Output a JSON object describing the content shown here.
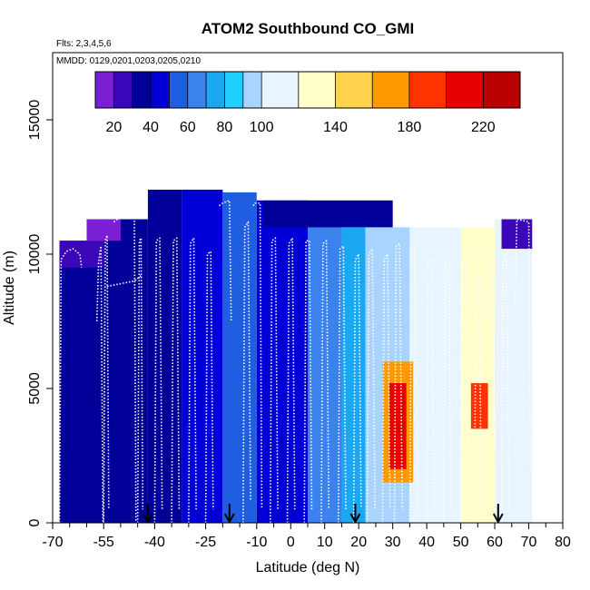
{
  "chart_data": {
    "type": "heatmap",
    "title": "ATOM2 Southbound CO_GMI",
    "flights_note": "Flts: 2,3,4,5,6",
    "dates_note": "MMDD: 0129,0201,0203,0205,0210",
    "xlabel": "Latitude (deg N)",
    "ylabel": "Altitude (m)",
    "xlim": [
      -70,
      80
    ],
    "ylim": [
      0,
      17500
    ],
    "x_ticks": [
      -70,
      -55,
      -40,
      -25,
      -10,
      0,
      10,
      20,
      30,
      40,
      50,
      60,
      70,
      80
    ],
    "x_minor_ticks": [
      -65,
      -60,
      -50,
      -45,
      -35,
      -30,
      -20,
      -15,
      -5,
      5,
      15,
      25,
      35,
      45,
      55,
      65,
      75
    ],
    "y_ticks": [
      0,
      5000,
      10000,
      15000
    ],
    "colorbar": {
      "min": 10,
      "max": 240,
      "ticks": [
        20,
        40,
        60,
        80,
        100,
        140,
        180,
        220
      ],
      "boundaries": [
        10,
        20,
        30,
        40,
        50,
        60,
        70,
        80,
        90,
        100,
        120,
        140,
        160,
        180,
        200,
        220,
        240
      ],
      "colors": [
        "#7a1fd6",
        "#3a06b8",
        "#000099",
        "#0000d6",
        "#1f5ee0",
        "#3b82ec",
        "#1aa8f2",
        "#1fd0ff",
        "#a8d4ff",
        "#e8f4ff",
        "#ffffcc",
        "#ffd24d",
        "#ff9900",
        "#ff3300",
        "#e60000",
        "#b80000"
      ]
    },
    "curtain_cells": [
      {
        "lat": [
          -68,
          -55
        ],
        "alt": [
          0,
          10500
        ],
        "value": 30
      },
      {
        "lat": [
          -55,
          -42
        ],
        "alt": [
          0,
          11300
        ],
        "value": 32
      },
      {
        "lat": [
          -42,
          -32
        ],
        "alt": [
          0,
          12400
        ],
        "value": 38
      },
      {
        "lat": [
          -32,
          -20
        ],
        "alt": [
          0,
          12400
        ],
        "value": 45
      },
      {
        "lat": [
          -20,
          -10
        ],
        "alt": [
          0,
          12300
        ],
        "value": 55
      },
      {
        "lat": [
          -10,
          5
        ],
        "alt": [
          0,
          12000
        ],
        "value": 48
      },
      {
        "lat": [
          5,
          15
        ],
        "alt": [
          0,
          11500
        ],
        "value": 62
      },
      {
        "lat": [
          15,
          22
        ],
        "alt": [
          0,
          11000
        ],
        "value": 75
      },
      {
        "lat": [
          22,
          35
        ],
        "alt": [
          0,
          11000
        ],
        "value": 95
      },
      {
        "lat": [
          35,
          50
        ],
        "alt": [
          0,
          11000
        ],
        "value": 110
      },
      {
        "lat": [
          50,
          60
        ],
        "alt": [
          0,
          11000
        ],
        "value": 120
      },
      {
        "lat": [
          60,
          71
        ],
        "alt": [
          0,
          11300
        ],
        "value": 105
      },
      {
        "lat": [
          27,
          36
        ],
        "alt": [
          1500,
          6000
        ],
        "value": 175
      },
      {
        "lat": [
          29,
          34
        ],
        "alt": [
          2000,
          5200
        ],
        "value": 215
      },
      {
        "lat": [
          53,
          58
        ],
        "alt": [
          3500,
          5200
        ],
        "value": 185
      },
      {
        "lat": [
          -68,
          -55
        ],
        "alt": [
          9500,
          10500
        ],
        "value": 22
      },
      {
        "lat": [
          -60,
          -50
        ],
        "alt": [
          10500,
          11300
        ],
        "value": 18
      },
      {
        "lat": [
          -8,
          30
        ],
        "alt": [
          11000,
          12000
        ],
        "value": 35
      },
      {
        "lat": [
          62,
          71
        ],
        "alt": [
          10200,
          11300
        ],
        "value": 20
      }
    ],
    "flight_profiles": [
      {
        "lat": [
          -68,
          -67.5,
          -66,
          -64,
          -62,
          -61.5
        ],
        "alt": [
          0,
          9800,
          10100,
          10200,
          10000,
          9500
        ]
      },
      {
        "lat": [
          -57,
          -56.5,
          -55.8,
          -55.2
        ],
        "alt": [
          7500,
          9700,
          10300,
          0
        ]
      },
      {
        "lat": [
          -55,
          -54.5,
          -54,
          -53.5
        ],
        "alt": [
          0,
          10500,
          10700,
          500
        ]
      },
      {
        "lat": [
          -52,
          -50,
          -48,
          -46,
          -45.5
        ],
        "alt": [
          11200,
          11400,
          11600,
          12200,
          0
        ]
      },
      {
        "lat": [
          -45,
          -44.5,
          -44,
          -43.5
        ],
        "alt": [
          0,
          10500,
          10600,
          500
        ]
      },
      {
        "lat": [
          -54,
          -50,
          -46,
          -44
        ],
        "alt": [
          8800,
          8900,
          9000,
          9200
        ]
      },
      {
        "lat": [
          -40,
          -39.5,
          -38.5,
          -37.8
        ],
        "alt": [
          0,
          10500,
          10600,
          500
        ]
      },
      {
        "lat": [
          -35,
          -34.5,
          -33.5,
          -32.8
        ],
        "alt": [
          0,
          10500,
          10600,
          500
        ]
      },
      {
        "lat": [
          -30,
          -29.5,
          -28.5,
          -27.8
        ],
        "alt": [
          0,
          10400,
          10600,
          500
        ]
      },
      {
        "lat": [
          -25,
          -24.5,
          -23.5,
          -22.8
        ],
        "alt": [
          0,
          10000,
          10100,
          500
        ]
      },
      {
        "lat": [
          -21,
          -20,
          -18,
          -17.5
        ],
        "alt": [
          11800,
          11900,
          12000,
          7500
        ]
      },
      {
        "lat": [
          -14,
          -13.5,
          -12.5,
          -11.8
        ],
        "alt": [
          0,
          11000,
          11200,
          800
        ]
      },
      {
        "lat": [
          -11,
          -10.5,
          -9,
          -8.5
        ],
        "alt": [
          11800,
          11900,
          11900,
          500
        ]
      },
      {
        "lat": [
          -6,
          -5.5,
          -4.5,
          -3.8
        ],
        "alt": [
          0,
          10500,
          10600,
          500
        ]
      },
      {
        "lat": [
          -1,
          -0.5,
          0.5,
          1.2
        ],
        "alt": [
          0,
          10400,
          10600,
          500
        ]
      },
      {
        "lat": [
          4,
          4.5,
          5.5,
          6.2
        ],
        "alt": [
          0,
          10500,
          10500,
          500
        ]
      },
      {
        "lat": [
          9,
          9.5,
          10.5,
          11.2
        ],
        "alt": [
          0,
          10400,
          10500,
          500
        ]
      },
      {
        "lat": [
          14,
          14.5,
          15.5,
          16.2
        ],
        "alt": [
          0,
          10200,
          10300,
          500
        ]
      },
      {
        "lat": [
          18.5,
          19,
          20,
          20.7
        ],
        "alt": [
          0,
          9800,
          10000,
          600
        ]
      },
      {
        "lat": [
          22.5,
          23,
          24,
          24.8
        ],
        "alt": [
          0,
          10000,
          10200,
          500
        ]
      },
      {
        "lat": [
          27,
          27.5,
          28.5,
          29.2
        ],
        "alt": [
          0,
          9800,
          10000,
          600
        ]
      },
      {
        "lat": [
          30.5,
          31,
          32,
          32.8
        ],
        "alt": [
          0,
          10300,
          10400,
          500
        ]
      },
      {
        "lat": [
          35,
          35.5,
          36.5,
          37.2
        ],
        "alt": [
          0,
          10200,
          10300,
          500
        ]
      },
      {
        "lat": [
          40,
          40.5,
          41.5,
          42.2
        ],
        "alt": [
          0,
          9800,
          9800,
          600
        ]
      },
      {
        "lat": [
          45,
          45.5,
          46.5,
          47.2
        ],
        "alt": [
          0,
          9800,
          9900,
          500
        ]
      },
      {
        "lat": [
          50,
          50.5,
          51.5,
          52.2
        ],
        "alt": [
          0,
          9800,
          9900,
          600
        ]
      },
      {
        "lat": [
          54,
          54.5,
          55.5,
          56
        ],
        "alt": [
          0,
          9200,
          9400,
          600
        ]
      },
      {
        "lat": [
          58,
          58.5,
          59.5,
          60.2
        ],
        "alt": [
          7500,
          9800,
          9900,
          500
        ]
      },
      {
        "lat": [
          62,
          62.5,
          63.5,
          64.2
        ],
        "alt": [
          0,
          9800,
          10000,
          500
        ]
      },
      {
        "lat": [
          66,
          66.5,
          70,
          70.5
        ],
        "alt": [
          8000,
          11300,
          11200,
          2000
        ]
      }
    ],
    "arrows_lat": [
      -42,
      -18,
      19,
      61
    ]
  }
}
